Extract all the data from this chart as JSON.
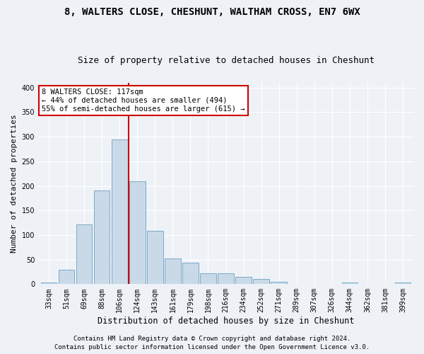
{
  "title1": "8, WALTERS CLOSE, CHESHUNT, WALTHAM CROSS, EN7 6WX",
  "title2": "Size of property relative to detached houses in Cheshunt",
  "xlabel": "Distribution of detached houses by size in Cheshunt",
  "ylabel": "Number of detached properties",
  "footer1": "Contains HM Land Registry data © Crown copyright and database right 2024.",
  "footer2": "Contains public sector information licensed under the Open Government Licence v3.0.",
  "bar_color": "#c9d9e8",
  "bar_edge_color": "#7aaac8",
  "categories": [
    "33sqm",
    "51sqm",
    "69sqm",
    "88sqm",
    "106sqm",
    "124sqm",
    "143sqm",
    "161sqm",
    "179sqm",
    "198sqm",
    "216sqm",
    "234sqm",
    "252sqm",
    "271sqm",
    "289sqm",
    "307sqm",
    "326sqm",
    "344sqm",
    "362sqm",
    "381sqm",
    "399sqm"
  ],
  "values": [
    4,
    30,
    122,
    190,
    295,
    210,
    108,
    52,
    44,
    22,
    22,
    15,
    11,
    5,
    1,
    1,
    0,
    4,
    1,
    0,
    4
  ],
  "vline_x_index": 4.5,
  "annotation_text1": "8 WALTERS CLOSE: 117sqm",
  "annotation_text2": "← 44% of detached houses are smaller (494)",
  "annotation_text3": "55% of semi-detached houses are larger (615) →",
  "ylim": [
    0,
    410
  ],
  "yticks": [
    0,
    50,
    100,
    150,
    200,
    250,
    300,
    350,
    400
  ],
  "background_color": "#eef2f7",
  "grid_color": "#ffffff",
  "vline_color": "#cc0000",
  "annotation_box_color": "#ffffff",
  "annotation_box_edge": "#cc0000",
  "title1_fontsize": 10,
  "title2_fontsize": 9,
  "xlabel_fontsize": 8.5,
  "ylabel_fontsize": 8,
  "tick_fontsize": 7,
  "footer_fontsize": 6.5,
  "annot_fontsize": 7.5
}
